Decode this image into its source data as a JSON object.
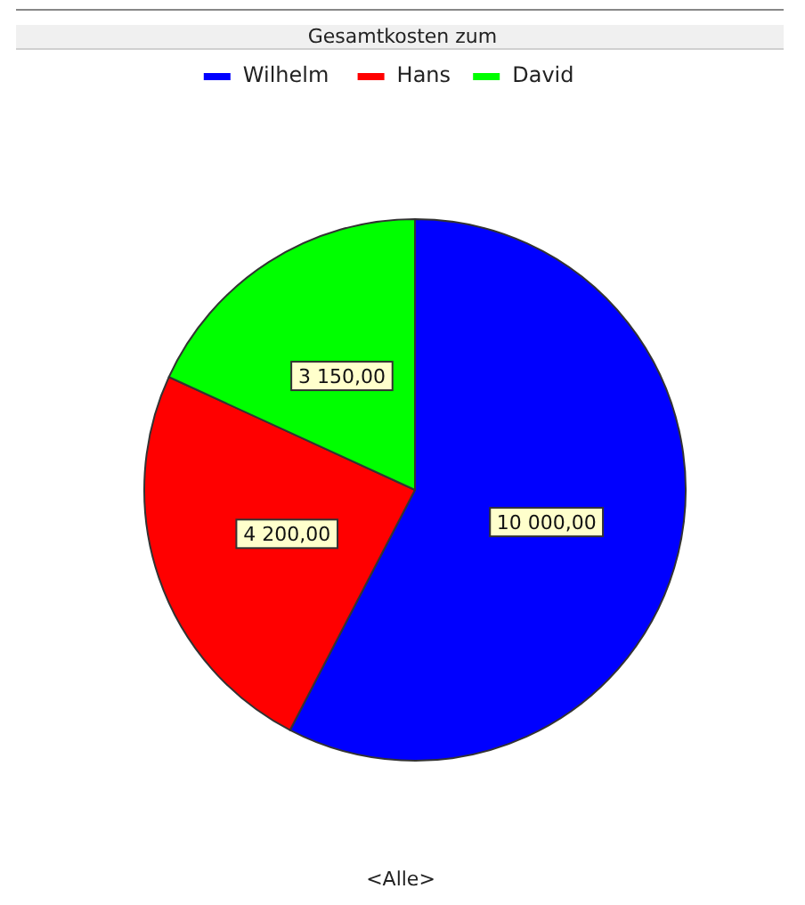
{
  "chart_data": {
    "type": "pie",
    "title": "Gesamtkosten zum",
    "categories": [
      "Wilhelm",
      "Hans",
      "David"
    ],
    "values": [
      10000,
      4200,
      3150
    ],
    "colors": [
      "#0000ff",
      "#ff0000",
      "#00ff00"
    ],
    "value_labels": [
      "10 000,00",
      "4 200,00",
      "3 150,00"
    ],
    "legend": "top",
    "annotations": [
      "<Alle>"
    ]
  }
}
